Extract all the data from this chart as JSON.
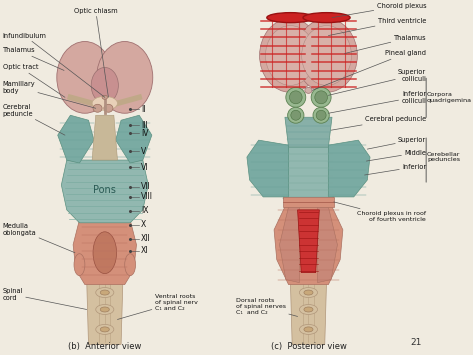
{
  "background_color": "#f0ebe0",
  "page_num": "21",
  "title_b": "(b)  Anterior view",
  "title_c": "(c)  Posterior view",
  "colors": {
    "background": "#f0ebe0",
    "thalamus_pink": "#d4a8a0",
    "thalamus_dark": "#c49088",
    "pons_teal": "#92b8b0",
    "pons_teal2": "#7aaba3",
    "pons_teal3": "#85afaa",
    "medulla_salmon": "#d4907a",
    "medulla_dark": "#c07862",
    "spinal_cream": "#d4c0a0",
    "spinal_dark": "#c4aa88",
    "cerebellum_green": "#98b890",
    "green_dark": "#7a9870",
    "red_stripe": "#cc3333",
    "text_color": "#111111",
    "line_color": "#555555",
    "optic_cream": "#e8d0b8"
  }
}
